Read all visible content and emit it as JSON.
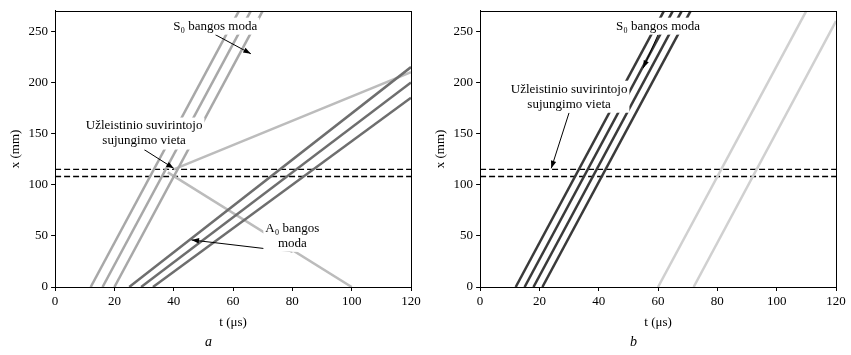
{
  "chart_data": [
    {
      "type": "line",
      "title": "a",
      "x_label": "t (μs)",
      "y_label": "x (mm)",
      "xlim": [
        0,
        120
      ],
      "xticks": [
        0,
        20,
        40,
        60,
        80,
        100,
        120
      ],
      "ylim": [
        0,
        270
      ],
      "yticks": [
        0,
        50,
        100,
        150,
        200,
        250
      ],
      "grid": false,
      "series": [
        {
          "color": "#a8a8a8",
          "line_style": "solid",
          "x": [
            12,
            62
          ],
          "values": [
            0,
            270
          ]
        },
        {
          "color": "#a8a8a8",
          "line_style": "solid",
          "x": [
            16,
            66
          ],
          "values": [
            0,
            270
          ]
        },
        {
          "color": "#a8a8a8",
          "line_style": "solid",
          "x": [
            20,
            70
          ],
          "values": [
            0,
            270
          ]
        },
        {
          "color": "#6e6e6e",
          "line_style": "solid",
          "x": [
            25,
            120
          ],
          "values": [
            0,
            215
          ]
        },
        {
          "color": "#6e6e6e",
          "line_style": "solid",
          "x": [
            29,
            120
          ],
          "values": [
            0,
            200
          ]
        },
        {
          "color": "#6e6e6e",
          "line_style": "solid",
          "x": [
            33,
            120
          ],
          "values": [
            0,
            185
          ]
        },
        {
          "color": "#bcbcbc",
          "line_style": "solid",
          "x": [
            38,
            100
          ],
          "values": [
            112,
            0
          ]
        },
        {
          "color": "#bcbcbc",
          "line_style": "solid",
          "x": [
            40,
            120
          ],
          "values": [
            115,
            210
          ]
        },
        {
          "color": "#000000",
          "line_style": "dashed",
          "x": [
            0,
            120
          ],
          "values": [
            108,
            108
          ]
        },
        {
          "color": "#000000",
          "line_style": "dashed",
          "x": [
            0,
            120
          ],
          "values": [
            115,
            115
          ]
        }
      ],
      "annotations": [
        {
          "lines": [
            "S₀ bangos moda"
          ],
          "x": 54,
          "y": 255,
          "arrow_to": [
            66,
            228
          ]
        },
        {
          "lines": [
            "Užleistinio suvirintojo",
            "sujungimo vieta"
          ],
          "x": 30,
          "y": 150,
          "arrow_to": [
            40,
            116
          ]
        },
        {
          "lines": [
            "A₀ bangos",
            "moda"
          ],
          "x": 80,
          "y": 50,
          "arrow_to": [
            46,
            46
          ]
        }
      ]
    },
    {
      "type": "line",
      "title": "b",
      "x_label": "t (μs)",
      "y_label": "x (mm)",
      "xlim": [
        0,
        120
      ],
      "xticks": [
        0,
        20,
        40,
        60,
        80,
        100,
        120
      ],
      "ylim": [
        0,
        270
      ],
      "yticks": [
        0,
        50,
        100,
        150,
        200,
        250
      ],
      "grid": false,
      "series": [
        {
          "color": "#3a3a3a",
          "line_style": "solid",
          "x": [
            12,
            62
          ],
          "values": [
            0,
            270
          ]
        },
        {
          "color": "#3a3a3a",
          "line_style": "solid",
          "x": [
            15,
            65
          ],
          "values": [
            0,
            270
          ]
        },
        {
          "color": "#3a3a3a",
          "line_style": "solid",
          "x": [
            18,
            68
          ],
          "values": [
            0,
            270
          ]
        },
        {
          "color": "#3a3a3a",
          "line_style": "solid",
          "x": [
            21,
            71
          ],
          "values": [
            0,
            270
          ]
        },
        {
          "color": "#d0d0d0",
          "line_style": "solid",
          "x": [
            60,
            110
          ],
          "values": [
            0,
            270
          ]
        },
        {
          "color": "#d0d0d0",
          "line_style": "solid",
          "x": [
            72,
            120
          ],
          "values": [
            0,
            260
          ]
        },
        {
          "color": "#000000",
          "line_style": "dashed",
          "x": [
            0,
            120
          ],
          "values": [
            108,
            108
          ]
        },
        {
          "color": "#000000",
          "line_style": "dashed",
          "x": [
            0,
            120
          ],
          "values": [
            115,
            115
          ]
        }
      ],
      "annotations": [
        {
          "lines": [
            "S₀ bangos moda"
          ],
          "x": 60,
          "y": 255,
          "arrow_to": [
            55,
            214
          ]
        },
        {
          "lines": [
            "Užleistinio suvirintojo",
            "sujungimo vieta"
          ],
          "x": 30,
          "y": 186,
          "arrow_to": [
            24,
            116
          ]
        }
      ]
    }
  ]
}
